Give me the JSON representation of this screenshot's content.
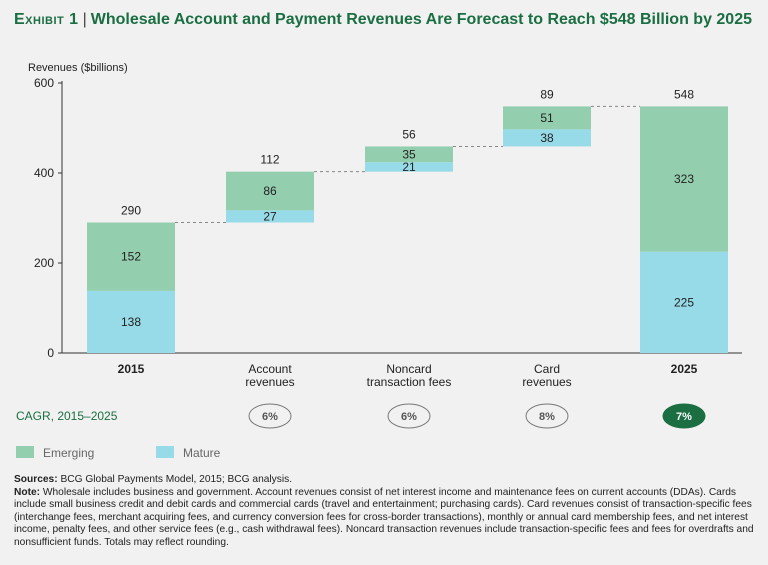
{
  "title": {
    "exhibit": "Exhibit 1",
    "text": "Wholesale Account and Payment Revenues Are Forecast to Reach $548 Billion by 2025"
  },
  "colors": {
    "emerging": "#93cfae",
    "mature": "#98dbe8",
    "accent": "#1a6e42",
    "axis": "#333333",
    "connector": "#888888"
  },
  "chart_data": {
    "type": "bar",
    "subtype": "waterfall",
    "ylabel": "Revenues ($billions)",
    "ylim": [
      0,
      600
    ],
    "yticks": [
      0,
      200,
      400,
      600
    ],
    "grid": false,
    "categories": [
      {
        "label": "2015",
        "bold": true
      },
      {
        "label": "Account\nrevenues",
        "bold": false
      },
      {
        "label": "Noncard\ntransaction fees",
        "bold": false
      },
      {
        "label": "Card\nrevenues",
        "bold": false
      },
      {
        "label": "2025",
        "bold": true
      }
    ],
    "bars": [
      {
        "base": 0,
        "mature": 138,
        "emerging": 152,
        "total_label": "290"
      },
      {
        "base": 290,
        "mature": 27,
        "emerging": 86,
        "total_label": "112"
      },
      {
        "base": 403,
        "mature": 21,
        "emerging": 35,
        "total_label": "56"
      },
      {
        "base": 459,
        "mature": 38,
        "emerging": 51,
        "total_label": "89"
      },
      {
        "base": 0,
        "mature": 225,
        "emerging": 323,
        "total_label": "548"
      }
    ],
    "series": [
      {
        "name": "Emerging",
        "values": [
          152,
          86,
          35,
          51,
          323
        ]
      },
      {
        "name": "Mature",
        "values": [
          138,
          27,
          21,
          38,
          225
        ]
      }
    ],
    "cagr_label": "CAGR, 2015–2025",
    "cagr": [
      null,
      "6%",
      "6%",
      "8%",
      "7%"
    ],
    "legend": [
      {
        "name": "Emerging",
        "key": "emerging"
      },
      {
        "name": "Mature",
        "key": "mature"
      }
    ],
    "legend_position": "bottom-left"
  },
  "footnotes": {
    "sources_label": "Sources:",
    "sources_text": "BCG Global Payments Model, 2015; BCG analysis.",
    "note_label": "Note:",
    "note_text": "Wholesale includes business and government. Account revenues consist of net interest income and maintenance fees on current accounts (DDAs). Cards include small business credit and debit cards and commercial cards (travel and entertainment; purchasing cards). Card revenues consist of transaction-specific fees (interchange fees, merchant acquiring fees, and currency conversion fees for cross-border transactions), monthly or annual card membership fees, and net interest income, penalty fees, and other service fees (e.g., cash withdrawal fees). Noncard transaction revenues include transaction-specific fees and fees for overdrafts and nonsufficient funds. Totals may reflect rounding."
  }
}
